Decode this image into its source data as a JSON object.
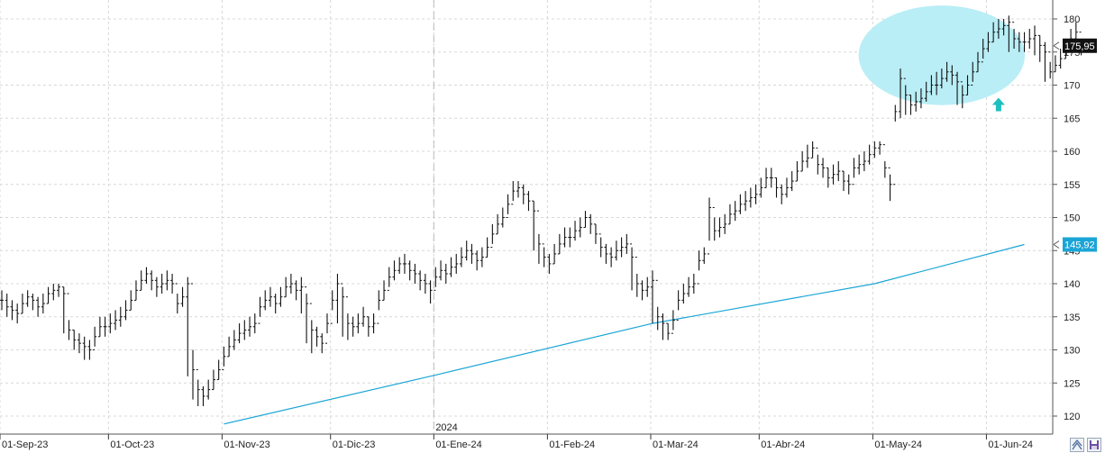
{
  "chart_data": {
    "type": "ohlc",
    "title": "",
    "xlabel": "",
    "ylabel": "",
    "ylim": [
      118,
      182
    ],
    "y_ticks": [
      120,
      125,
      130,
      135,
      140,
      145,
      150,
      155,
      160,
      165,
      170,
      175,
      180
    ],
    "y_tick_labels": [
      "120",
      "125",
      "130",
      "135",
      "140",
      "145",
      "150",
      "155",
      "160",
      "165",
      "170",
      "175",
      "180"
    ],
    "x_ticks": [
      {
        "label": "01-Sep-23",
        "bar": 0
      },
      {
        "label": "01-Oct-23",
        "bar": 21
      },
      {
        "label": "01-Nov-23",
        "bar": 43
      },
      {
        "label": "01-Dic-23",
        "bar": 64
      },
      {
        "label": "01-Ene-24",
        "bar": 84
      },
      {
        "label": "01-Feb-24",
        "bar": 106
      },
      {
        "label": "01-Mar-24",
        "bar": 126
      },
      {
        "label": "01-Abr-24",
        "bar": 147
      },
      {
        "label": "01-May-24",
        "bar": 169
      },
      {
        "label": "01-Jun-24",
        "bar": 191
      }
    ],
    "year_separator": {
      "label": "2024",
      "bar": 84
    },
    "grid": true,
    "close": [
      137.5,
      136.5,
      136,
      135.5,
      137,
      138,
      137.5,
      136.5,
      137,
      138.5,
      139,
      139.5,
      138.5,
      133,
      131.5,
      131,
      130.5,
      130,
      132,
      133.5,
      133.5,
      134,
      134.5,
      135,
      136,
      137.5,
      139,
      140.5,
      141.5,
      140.5,
      139.5,
      140,
      140.5,
      140,
      137,
      138,
      140,
      127,
      124,
      123,
      124,
      125.5,
      127,
      129,
      130.5,
      131.5,
      132.5,
      133,
      133.5,
      134,
      136.5,
      137.5,
      138,
      137,
      138,
      139.5,
      140,
      139,
      139.5,
      137,
      133,
      132,
      131,
      134,
      137.5,
      140,
      138,
      134,
      133.5,
      134,
      135,
      133.5,
      134,
      137.5,
      139,
      141,
      142,
      143,
      143,
      142,
      141.5,
      140.5,
      140,
      139,
      141,
      142,
      141.5,
      142.5,
      143,
      144,
      145,
      144.5,
      143.5,
      144,
      145.5,
      147.5,
      149,
      150,
      152,
      154,
      154.5,
      153.5,
      152.5,
      151,
      146,
      144,
      143,
      144.5,
      146,
      147,
      147,
      148,
      148.5,
      150,
      149,
      147.5,
      145.5,
      144.5,
      144,
      145,
      145.5,
      146,
      144,
      140,
      139,
      139.5,
      140.5,
      135,
      134,
      132.5,
      134.5,
      137.5,
      138.5,
      139.5,
      140,
      143.5,
      144.5,
      151.5,
      148,
      148.5,
      149,
      150.5,
      151,
      152,
      152.5,
      153,
      153.5,
      154.5,
      156,
      156,
      154.5,
      153.5,
      154.5,
      155.5,
      157,
      158.5,
      159,
      160.5,
      158,
      157.5,
      156,
      156.5,
      157,
      155.5,
      155,
      157.5,
      158,
      158.5,
      159.5,
      160.5,
      161,
      157.5,
      155,
      166,
      171,
      168.5,
      167,
      167.5,
      168,
      169,
      170,
      170,
      171,
      172,
      171.5,
      170.5,
      168.5,
      170,
      172,
      173.5,
      175.5,
      176.5,
      178,
      178.5,
      179,
      179.5,
      177,
      176.5,
      176.5,
      177,
      177.5,
      176,
      175,
      172,
      173,
      174,
      175.5,
      177,
      178,
      175.95
    ],
    "high": [
      139,
      138.5,
      137.5,
      137,
      138.5,
      139,
      138.5,
      138,
      138.5,
      139.5,
      140,
      140,
      139.5,
      134.5,
      133,
      132.5,
      132,
      131.5,
      133.5,
      135,
      135,
      135.5,
      136,
      136.5,
      137.5,
      139,
      140.5,
      142,
      142.5,
      142,
      141,
      141.5,
      142,
      141.5,
      138.5,
      139.5,
      141,
      130,
      125.5,
      124.5,
      125.5,
      127,
      128.5,
      130.5,
      132,
      133,
      134,
      134.5,
      135,
      135.5,
      138,
      139,
      139.5,
      138.5,
      139.5,
      141,
      141.5,
      140.5,
      141,
      138.5,
      134.5,
      133.5,
      132.5,
      135.5,
      139,
      141.5,
      139.5,
      135.5,
      135,
      135.5,
      136.5,
      135,
      135.5,
      139,
      140.5,
      142.5,
      143.5,
      144,
      144.5,
      143.5,
      143,
      142,
      141.5,
      140.5,
      142.5,
      143.5,
      143,
      144,
      144.5,
      145.5,
      146.5,
      146,
      145,
      145.5,
      147,
      149,
      150.5,
      151.5,
      153.5,
      155.5,
      155.5,
      155,
      154,
      152.5,
      147.5,
      145.5,
      144.5,
      146,
      147.5,
      148.5,
      148.5,
      149.5,
      150,
      151,
      150.5,
      149,
      147,
      146,
      145.5,
      146.5,
      147,
      147.5,
      145.5,
      141.5,
      140.5,
      141,
      142,
      136.5,
      135.5,
      134,
      136,
      139,
      140,
      141,
      141.5,
      145,
      145.5,
      153,
      150,
      150,
      150.5,
      152,
      152.5,
      153.5,
      154,
      154.5,
      155,
      156,
      157.5,
      157.5,
      156,
      155,
      156,
      157,
      158.5,
      160,
      161,
      161.5,
      159.5,
      159,
      157.5,
      158,
      158.5,
      157,
      156.5,
      159,
      159.5,
      160,
      161,
      161.5,
      161.5,
      158.5,
      156.5,
      167,
      172.5,
      170,
      168.5,
      169,
      169.5,
      170.5,
      171.5,
      172,
      172.5,
      173.5,
      173,
      172,
      170,
      171.5,
      173.5,
      175,
      177,
      178,
      179.5,
      180,
      180,
      180.5,
      178.5,
      178,
      178,
      178.5,
      179,
      177.5,
      176.5,
      173.5,
      174.5,
      175.5,
      177,
      178.5,
      179.5,
      177
    ],
    "low": [
      136,
      135,
      134.5,
      134,
      135.5,
      136.5,
      136,
      135,
      135.5,
      137,
      137.5,
      138,
      132.5,
      131.5,
      130,
      129.5,
      128.5,
      128.5,
      130.5,
      132,
      132,
      132.5,
      133,
      133.5,
      134.5,
      136,
      137.5,
      139,
      140,
      139,
      138,
      138.5,
      139,
      138.5,
      135.5,
      136.5,
      126,
      122.5,
      121.5,
      121.5,
      122.5,
      124,
      125.5,
      127.5,
      129,
      130,
      131,
      131.5,
      132,
      132.5,
      135,
      136,
      136.5,
      135.5,
      136.5,
      138,
      138.5,
      137.5,
      135.5,
      131,
      129.5,
      130.5,
      129.5,
      132.5,
      136,
      134,
      132,
      131.5,
      132,
      132.5,
      133.5,
      132,
      132.5,
      136,
      137.5,
      139.5,
      140.5,
      141.5,
      141.5,
      140.5,
      140,
      139,
      138.5,
      137,
      139.5,
      140.5,
      140,
      141,
      141.5,
      142.5,
      143.5,
      143,
      142,
      142.5,
      144,
      146,
      147.5,
      148.5,
      150.5,
      152.5,
      153,
      152,
      151,
      145,
      143,
      142.5,
      141.5,
      143,
      144.5,
      145.5,
      145.5,
      146.5,
      147,
      148.5,
      147.5,
      146,
      144,
      143,
      142.5,
      143.5,
      144,
      144.5,
      139,
      138,
      137.5,
      138,
      134,
      133,
      131.5,
      131.5,
      133,
      136,
      137,
      138,
      138.5,
      142,
      143,
      146.5,
      146.5,
      147,
      147.5,
      149,
      149.5,
      150.5,
      151,
      151.5,
      152,
      153,
      154.5,
      154.5,
      153,
      152,
      153,
      154,
      155.5,
      157,
      157.5,
      159,
      156.5,
      156,
      154.5,
      155,
      155.5,
      154,
      153.5,
      156,
      156.5,
      157,
      158,
      159,
      159.5,
      156,
      152.5,
      164.5,
      165,
      165.5,
      165.5,
      166,
      166.5,
      167.5,
      168.5,
      168.5,
      169.5,
      170.5,
      170,
      167,
      166.5,
      168.5,
      170.5,
      172,
      174,
      175,
      176.5,
      177,
      177.5,
      175,
      175.5,
      175,
      175,
      175.5,
      174.5,
      173.5,
      170.5,
      171,
      172,
      172.5,
      174,
      175.5,
      176.5,
      174.5
    ],
    "series": [
      {
        "name": "",
        "type": "line",
        "color": "#1aa5d6",
        "points": [
          [
            43,
            118.8
          ],
          [
            84,
            126.2
          ],
          [
            126,
            134.0
          ],
          [
            169,
            140.0
          ],
          [
            198,
            145.92
          ]
        ]
      }
    ],
    "last_price": 175.95,
    "last_price_label": "175,95",
    "ma_value": 145.92,
    "ma_label": "145,92",
    "annotations": [
      {
        "type": "ellipse",
        "color": "#b9eef6",
        "center_bar": 182,
        "center_y": 174.5,
        "rx_bars": 14,
        "ry_units": 4.7
      },
      {
        "type": "up-arrow",
        "color": "#1fbfbf",
        "bar": 193,
        "y": 167
      }
    ]
  },
  "colors": {
    "bars": "#111111",
    "grid": "#d8d8d8",
    "price_badge": "#111111",
    "ma_badge": "#1aa5d6",
    "ma_line": "#1aa5d6",
    "ellipse": "#b9eef6",
    "arrow": "#1fbfbf"
  },
  "corner_buttons": {
    "zoom_icon": "zoom-fit-icon",
    "save_icon": "save-icon"
  }
}
